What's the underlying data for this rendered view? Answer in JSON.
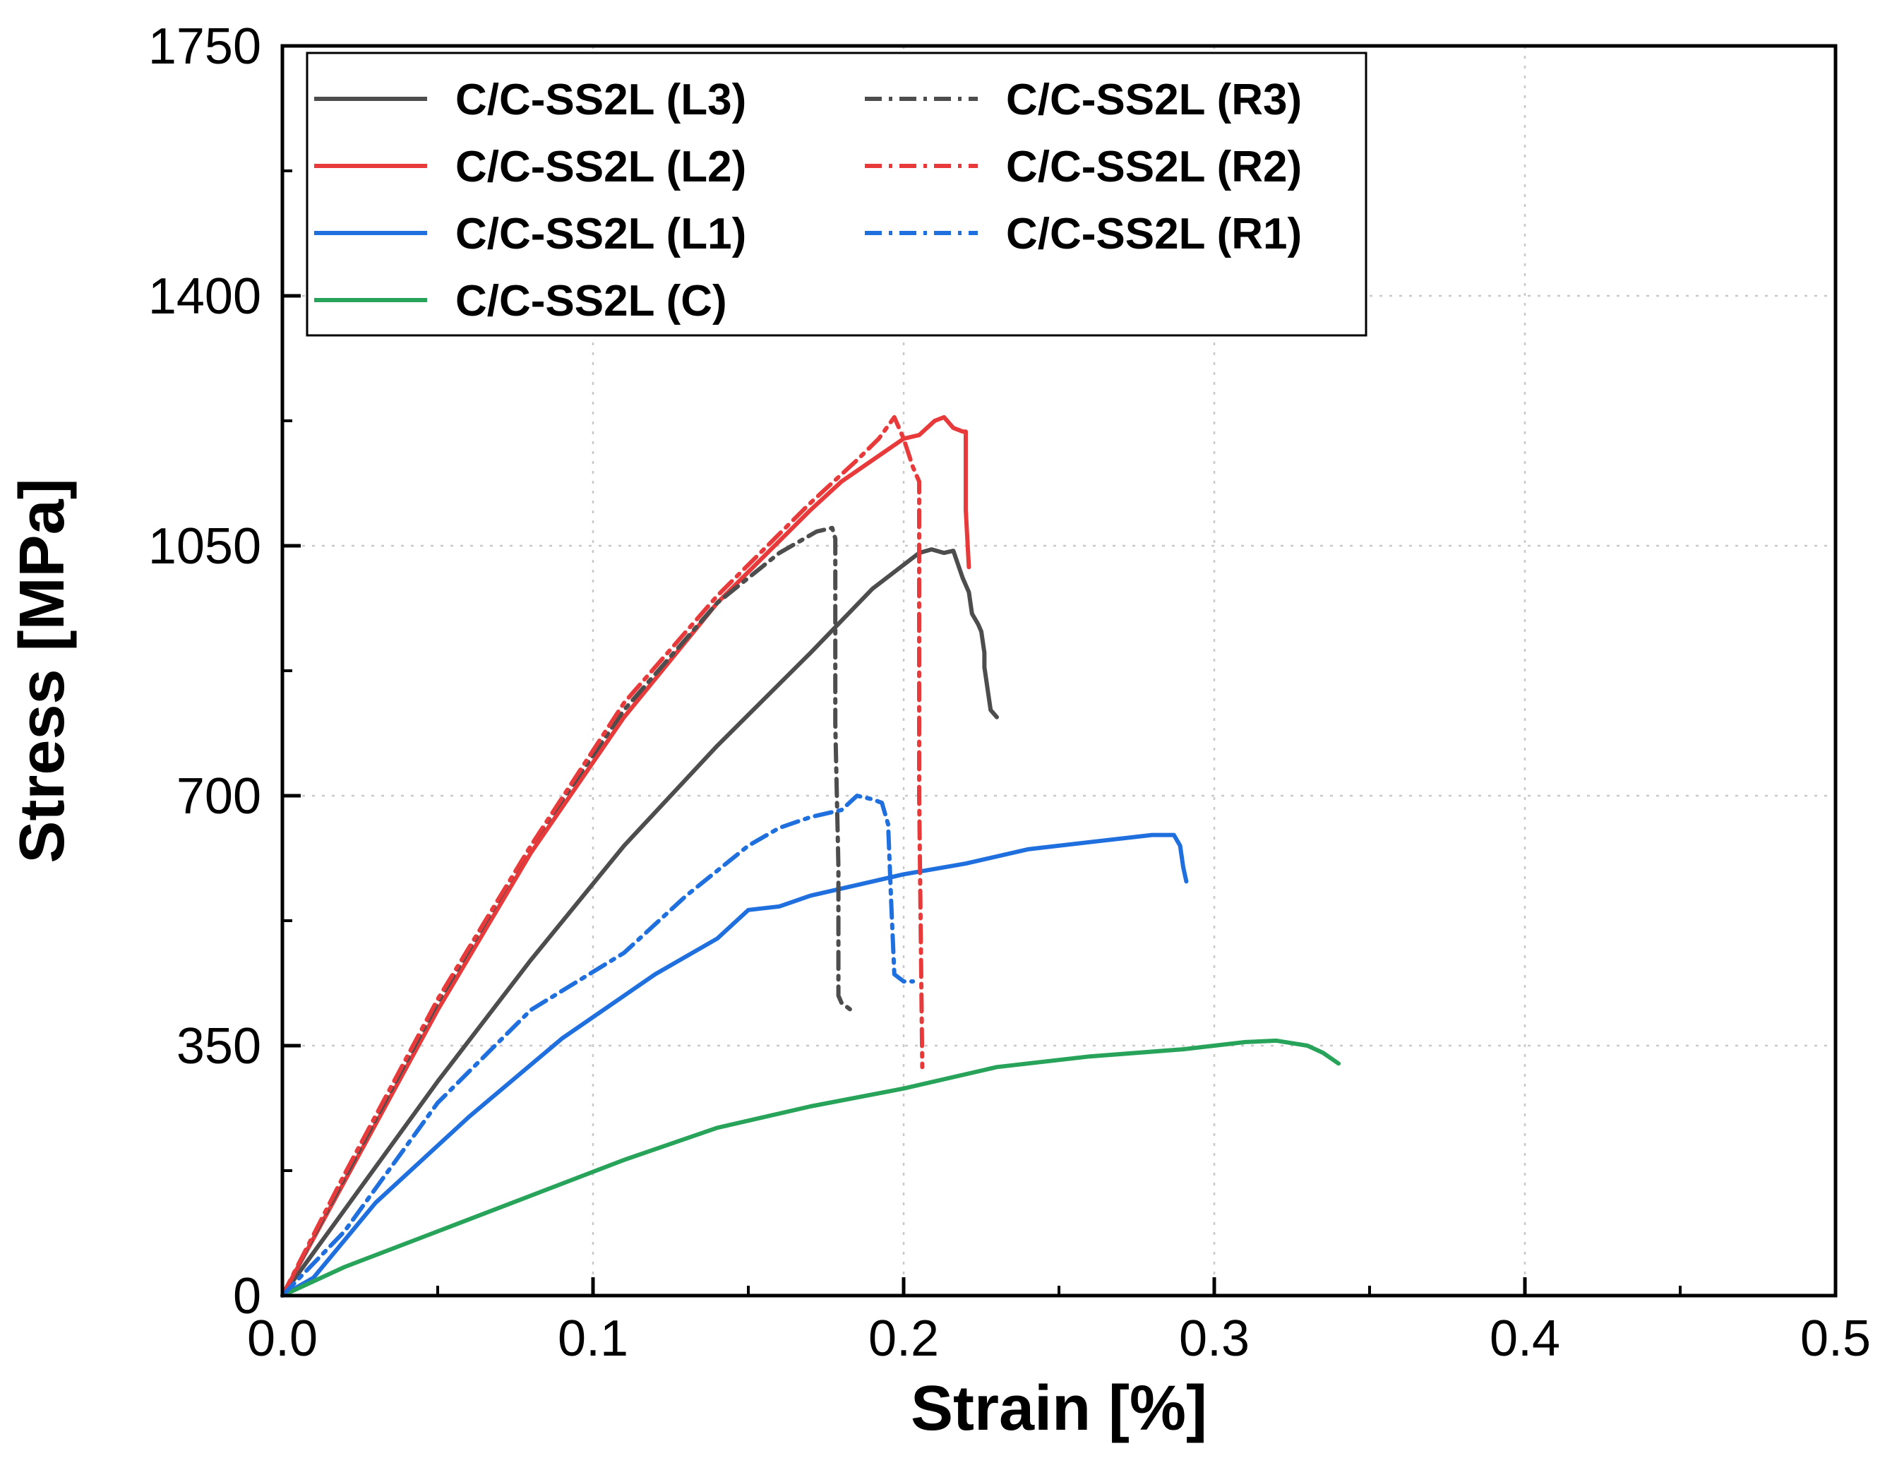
{
  "chart_data": {
    "type": "line",
    "title": "",
    "xlabel": "Strain [%]",
    "ylabel": "Stress [MPa]",
    "xlim": [
      0,
      0.5
    ],
    "ylim": [
      0,
      1750
    ],
    "xticks": [
      "0.0",
      "0.1",
      "0.2",
      "0.3",
      "0.4",
      "0.5"
    ],
    "yticks": [
      "0",
      "350",
      "700",
      "1050",
      "1400",
      "1750"
    ],
    "grid": true,
    "legend_position": "top-left",
    "series": [
      {
        "name": "C/C-SS2L (L3)",
        "color": "#4d4d4d",
        "style": "solid",
        "x": [
          0,
          0.02,
          0.05,
          0.08,
          0.11,
          0.14,
          0.17,
          0.19,
          0.205,
          0.209,
          0.213,
          0.216,
          0.219,
          0.221,
          0.222,
          0.224,
          0.225,
          0.226,
          0.226,
          0.227,
          0.228,
          0.23
        ],
        "y": [
          0,
          120,
          300,
          470,
          630,
          770,
          900,
          990,
          1040,
          1045,
          1040,
          1043,
          1005,
          985,
          955,
          940,
          930,
          900,
          880,
          850,
          820,
          810
        ]
      },
      {
        "name": "C/C-SS2L (L2)",
        "color": "#e83a3a",
        "style": "solid",
        "x": [
          0,
          0.02,
          0.05,
          0.08,
          0.11,
          0.14,
          0.17,
          0.18,
          0.19,
          0.2,
          0.205,
          0.21,
          0.213,
          0.216,
          0.219,
          0.22,
          0.22,
          0.221
        ],
        "y": [
          0,
          160,
          400,
          620,
          810,
          970,
          1100,
          1140,
          1170,
          1200,
          1205,
          1225,
          1230,
          1215,
          1210,
          1210,
          1100,
          1020
        ]
      },
      {
        "name": "C/C-SS2L (L1)",
        "color": "#1f6fde",
        "style": "solid",
        "x": [
          0,
          0.01,
          0.03,
          0.06,
          0.09,
          0.12,
          0.14,
          0.15,
          0.16,
          0.17,
          0.19,
          0.2,
          0.22,
          0.24,
          0.26,
          0.28,
          0.287,
          0.289,
          0.29,
          0.291
        ],
        "y": [
          0,
          25,
          130,
          250,
          360,
          450,
          500,
          540,
          545,
          560,
          580,
          590,
          605,
          625,
          635,
          645,
          645,
          630,
          600,
          580
        ]
      },
      {
        "name": "C/C-SS2L (C)",
        "color": "#27a35a",
        "style": "solid",
        "x": [
          0,
          0.02,
          0.05,
          0.08,
          0.11,
          0.14,
          0.17,
          0.2,
          0.23,
          0.26,
          0.29,
          0.31,
          0.32,
          0.33,
          0.335,
          0.34
        ],
        "y": [
          0,
          40,
          90,
          140,
          190,
          235,
          265,
          290,
          320,
          335,
          345,
          355,
          357,
          350,
          340,
          325
        ]
      },
      {
        "name": "C/C-SS2L (R3)",
        "color": "#4d4d4d",
        "style": "dashdot",
        "x": [
          0,
          0.02,
          0.05,
          0.08,
          0.11,
          0.14,
          0.16,
          0.172,
          0.177,
          0.178,
          0.178,
          0.179,
          0.179,
          0.18,
          0.183
        ],
        "y": [
          0,
          165,
          410,
          630,
          820,
          970,
          1040,
          1070,
          1075,
          1060,
          800,
          600,
          420,
          410,
          400
        ]
      },
      {
        "name": "C/C-SS2L (R2)",
        "color": "#e83a3a",
        "style": "dashdot",
        "x": [
          0,
          0.02,
          0.05,
          0.08,
          0.11,
          0.14,
          0.17,
          0.185,
          0.192,
          0.197,
          0.2,
          0.203,
          0.205,
          0.205,
          0.206
        ],
        "y": [
          0,
          170,
          415,
          630,
          830,
          980,
          1110,
          1170,
          1200,
          1230,
          1200,
          1160,
          1140,
          700,
          320
        ]
      },
      {
        "name": "C/C-SS2L (R1)",
        "color": "#1f6fde",
        "style": "dashdot",
        "x": [
          0,
          0.02,
          0.05,
          0.08,
          0.11,
          0.13,
          0.15,
          0.16,
          0.17,
          0.18,
          0.185,
          0.19,
          0.193,
          0.195,
          0.196,
          0.197,
          0.2,
          0.203
        ],
        "y": [
          0,
          90,
          270,
          400,
          480,
          560,
          630,
          655,
          670,
          680,
          700,
          695,
          690,
          660,
          550,
          450,
          440,
          440
        ]
      }
    ]
  }
}
